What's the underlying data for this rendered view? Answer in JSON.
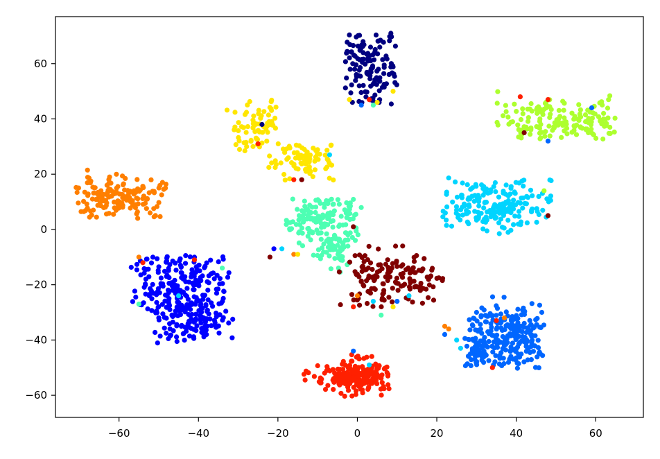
{
  "chart_data": {
    "type": "scatter",
    "title": "",
    "xlabel": "",
    "ylabel": "",
    "xlim": [
      -76,
      72
    ],
    "ylim": [
      -68,
      77
    ],
    "xticks": [
      -60,
      -40,
      -20,
      0,
      20,
      40,
      60
    ],
    "yticks": [
      -60,
      -40,
      -20,
      0,
      20,
      40,
      60
    ],
    "xtick_labels": [
      "−60",
      "−40",
      "−20",
      "0",
      "20",
      "40",
      "60"
    ],
    "ytick_labels": [
      "−60",
      "−40",
      "−20",
      "0",
      "20",
      "40",
      "60"
    ],
    "grid": false,
    "legend": "none",
    "clusters": [
      {
        "color": "#000080",
        "cx": 3,
        "cy": 58,
        "sx": 6,
        "sy": 11,
        "n": 130,
        "region": [
          -3,
          10,
          45,
          71
        ]
      },
      {
        "color": "#adff2f",
        "cx": 50,
        "cy": 39,
        "sx": 12,
        "sy": 4,
        "n": 160,
        "region": [
          35,
          65,
          32,
          50
        ]
      },
      {
        "color": "#ffe600",
        "cx": -25,
        "cy": 38,
        "sx": 4,
        "sy": 6,
        "n": 70,
        "region": [
          -33,
          -20,
          28,
          47
        ]
      },
      {
        "color": "#ffe600",
        "cx": -13,
        "cy": 25,
        "sx": 5,
        "sy": 4,
        "n": 80,
        "region": [
          -23,
          -6,
          17,
          31
        ]
      },
      {
        "color": "#ff7f00",
        "cx": -60,
        "cy": 11,
        "sx": 8,
        "sy": 4,
        "n": 160,
        "region": [
          -71,
          -48,
          4,
          22
        ]
      },
      {
        "color": "#00d4ff",
        "cx": 34,
        "cy": 9,
        "sx": 11,
        "sy": 5,
        "n": 190,
        "region": [
          21,
          49,
          -2,
          19
        ]
      },
      {
        "color": "#4dffb3",
        "cx": -8,
        "cy": 4,
        "sx": 6,
        "sy": 5,
        "n": 140,
        "region": [
          -19,
          1,
          -18,
          11
        ]
      },
      {
        "color": "#4dffb3",
        "cx": -6,
        "cy": -8,
        "sx": 3,
        "sy": 5,
        "n": 45,
        "region": [
          -12,
          0,
          -16,
          0
        ]
      },
      {
        "color": "#800000",
        "cx": 9,
        "cy": -18,
        "sx": 8,
        "sy": 5,
        "n": 150,
        "region": [
          -5,
          23,
          -28,
          -5
        ]
      },
      {
        "color": "#0000ff",
        "cx": -44,
        "cy": -20,
        "sx": 7,
        "sy": 6,
        "n": 200,
        "region": [
          -57,
          -32,
          -31,
          -8
        ]
      },
      {
        "color": "#0000ff",
        "cx": -42,
        "cy": -33,
        "sx": 6,
        "sy": 4,
        "n": 120,
        "region": [
          -52,
          -31,
          -42,
          -25
        ]
      },
      {
        "color": "#0066ff",
        "cx": 38,
        "cy": -38,
        "sx": 6,
        "sy": 6,
        "n": 220,
        "region": [
          28,
          47,
          -51,
          -24
        ]
      },
      {
        "color": "#0066ff",
        "cx": 31,
        "cy": -44,
        "sx": 3,
        "sy": 4,
        "n": 50,
        "region": [
          27,
          36,
          -51,
          -36
        ]
      },
      {
        "color": "#ff2000",
        "cx": 1,
        "cy": -53,
        "sx": 6,
        "sy": 3,
        "n": 210,
        "region": [
          -14,
          8,
          -61,
          -41
        ]
      }
    ],
    "strays": [
      {
        "x": -55,
        "y": -10,
        "color": "#ff7f00"
      },
      {
        "x": -54,
        "y": -12,
        "color": "#ff2000"
      },
      {
        "x": -41,
        "y": -11,
        "color": "#ff2000"
      },
      {
        "x": -55,
        "y": -27,
        "color": "#4dffb3"
      },
      {
        "x": -45,
        "y": -24,
        "color": "#00d4ff"
      },
      {
        "x": -34,
        "y": -14,
        "color": "#4dffb3"
      },
      {
        "x": -21,
        "y": -7,
        "color": "#0000ff"
      },
      {
        "x": -22,
        "y": -10,
        "color": "#800000"
      },
      {
        "x": -16,
        "y": -9,
        "color": "#ff7f00"
      },
      {
        "x": -15,
        "y": -9,
        "color": "#ffe600"
      },
      {
        "x": -19,
        "y": -7,
        "color": "#00d4ff"
      },
      {
        "x": -25,
        "y": 31,
        "color": "#ff2000"
      },
      {
        "x": -24,
        "y": 38,
        "color": "#000080"
      },
      {
        "x": -16,
        "y": 18,
        "color": "#ff2000"
      },
      {
        "x": -14,
        "y": 18,
        "color": "#800000"
      },
      {
        "x": -7,
        "y": 27,
        "color": "#00d4ff"
      },
      {
        "x": -2,
        "y": 47,
        "color": "#ffe600"
      },
      {
        "x": 1,
        "y": 45,
        "color": "#0066ff"
      },
      {
        "x": 5,
        "y": 46,
        "color": "#ffe600"
      },
      {
        "x": 4,
        "y": 45,
        "color": "#4dffb3"
      },
      {
        "x": 9,
        "y": 50,
        "color": "#ffe600"
      },
      {
        "x": 3,
        "y": 47,
        "color": "#ff2000"
      },
      {
        "x": -1,
        "y": 1,
        "color": "#800000"
      },
      {
        "x": 4,
        "y": -26,
        "color": "#00d4ff"
      },
      {
        "x": 0,
        "y": -24,
        "color": "#ff7f00"
      },
      {
        "x": -1,
        "y": -28,
        "color": "#ff2000"
      },
      {
        "x": 6,
        "y": -31,
        "color": "#4dffb3"
      },
      {
        "x": 9,
        "y": -28,
        "color": "#ffe600"
      },
      {
        "x": 10,
        "y": -26,
        "color": "#0066ff"
      },
      {
        "x": 13,
        "y": -24,
        "color": "#00d4ff"
      },
      {
        "x": 3,
        "y": -49,
        "color": "#00d4ff"
      },
      {
        "x": -1,
        "y": -44,
        "color": "#0066ff"
      },
      {
        "x": 41,
        "y": 48,
        "color": "#ff2000"
      },
      {
        "x": 48,
        "y": 47,
        "color": "#ff2000"
      },
      {
        "x": 59,
        "y": 44,
        "color": "#0066ff"
      },
      {
        "x": 42,
        "y": 35,
        "color": "#800000"
      },
      {
        "x": 48,
        "y": 32,
        "color": "#0066ff"
      },
      {
        "x": 47,
        "y": 14,
        "color": "#adff2f"
      },
      {
        "x": 48,
        "y": 5,
        "color": "#800000"
      },
      {
        "x": 22,
        "y": -35,
        "color": "#ff7f00"
      },
      {
        "x": 23,
        "y": -36,
        "color": "#ff7f00"
      },
      {
        "x": 22,
        "y": -38,
        "color": "#0066ff"
      },
      {
        "x": 25,
        "y": -40,
        "color": "#00d4ff"
      },
      {
        "x": 26,
        "y": -43,
        "color": "#00d4ff"
      },
      {
        "x": 30,
        "y": -30,
        "color": "#0066ff"
      },
      {
        "x": 35,
        "y": -33,
        "color": "#ff2000"
      },
      {
        "x": 37,
        "y": -32,
        "color": "#ff7f00"
      },
      {
        "x": 34,
        "y": -50,
        "color": "#ff2000"
      }
    ]
  }
}
